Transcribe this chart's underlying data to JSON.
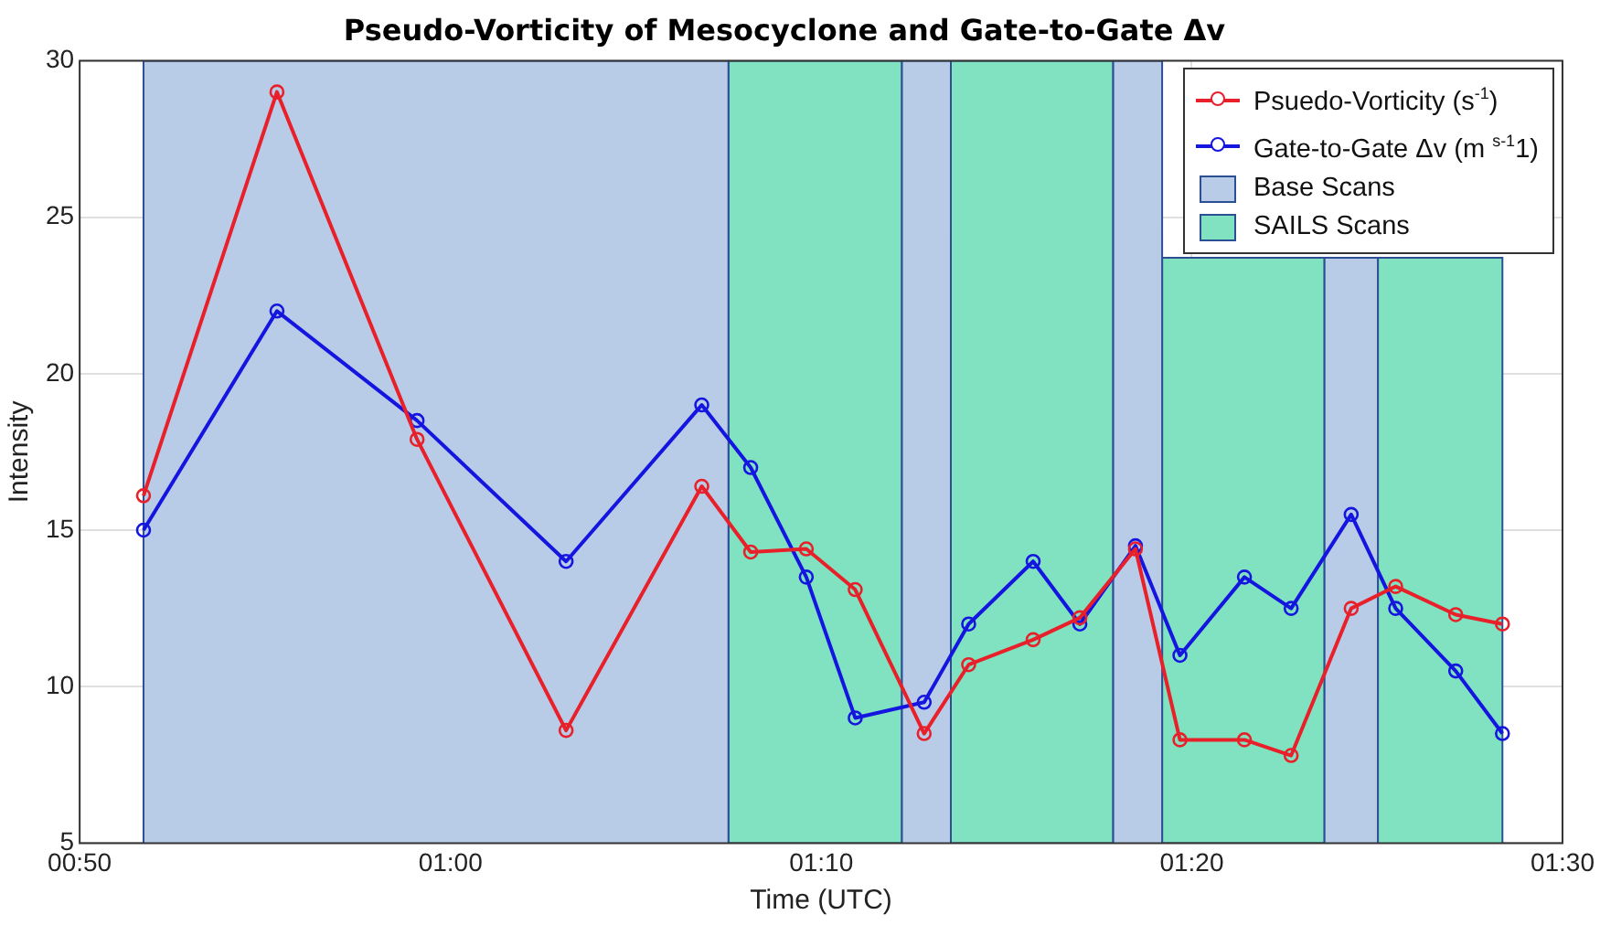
{
  "chart_data": {
    "type": "line",
    "title": "Pseudo-Vorticity of Mesocyclone and Gate-to-Gate Δv",
    "xlabel": "Time (UTC)",
    "ylabel": "Intensity",
    "xlim": [
      0.8333,
      1.5
    ],
    "xticks": [
      {
        "value": 0.8333,
        "label": "00:50"
      },
      {
        "value": 1,
        "label": "01:00"
      },
      {
        "value": 1.1667,
        "label": "01:10"
      },
      {
        "value": 1.3333,
        "label": "01:20"
      },
      {
        "value": 1.5,
        "label": "01:30"
      }
    ],
    "ylim": [
      5,
      30
    ],
    "yticks": [
      5,
      10,
      15,
      20,
      25,
      30
    ],
    "grid": true,
    "legend": "top right",
    "series": [
      {
        "name": "Psuedo-Vorticity (s$^{-1}$)",
        "marker": "circle",
        "color": "#e8202a",
        "x": [
          0.862,
          0.922,
          0.985,
          1.052,
          1.113,
          1.135,
          1.16,
          1.182,
          1.213,
          1.233,
          1.262,
          1.283,
          1.308,
          1.328,
          1.357,
          1.378,
          1.405,
          1.425,
          1.452,
          1.473
        ],
        "values": [
          16.1,
          29,
          17.9,
          8.6,
          16.4,
          14.3,
          14.4,
          13.1,
          8.5,
          10.7,
          11.5,
          12.2,
          14.4,
          8.3,
          8.3,
          7.8,
          12.5,
          13.2,
          12.3,
          12
        ]
      },
      {
        "name": "Gate-to-Gate Δv (m $^{s-1}$1)",
        "marker": "circle",
        "color": "#1515e0",
        "x": [
          0.862,
          0.922,
          0.985,
          1.052,
          1.113,
          1.135,
          1.16,
          1.182,
          1.213,
          1.233,
          1.262,
          1.283,
          1.308,
          1.328,
          1.357,
          1.378,
          1.405,
          1.425,
          1.452,
          1.473
        ],
        "values": [
          15,
          22,
          18.5,
          14,
          19,
          17,
          13.5,
          9,
          9.5,
          12,
          14,
          12,
          14.5,
          11,
          13.5,
          12.5,
          15.5,
          12.5,
          10.5,
          8.5
        ]
      },
      {
        "name": "Base Scans",
        "type": "area",
        "marker": "none",
        "color": "#b8cce8",
        "x": [
          0.862,
          0.862,
          1.125,
          1.125,
          1.203,
          1.203,
          1.225,
          1.225,
          1.298,
          1.298,
          1.32,
          1.32,
          1.393,
          1.393,
          1.417,
          1.417
        ],
        "values": [
          5,
          30,
          30,
          5,
          5,
          30,
          30,
          5,
          5,
          30,
          30,
          5,
          5,
          23.7,
          23.7,
          5
        ]
      },
      {
        "name": "SAILS Scans",
        "type": "area",
        "marker": "none",
        "color": "#80e2c0",
        "x": [
          1.125,
          1.125,
          1.203,
          1.203,
          1.225,
          1.225,
          1.298,
          1.298,
          1.32,
          1.32,
          1.393,
          1.393,
          1.417,
          1.417,
          1.473,
          1.473
        ],
        "values": [
          5,
          30,
          30,
          5,
          5,
          30,
          30,
          5,
          5,
          23.7,
          23.7,
          5,
          5,
          23.7,
          23.7,
          5
        ]
      }
    ]
  }
}
